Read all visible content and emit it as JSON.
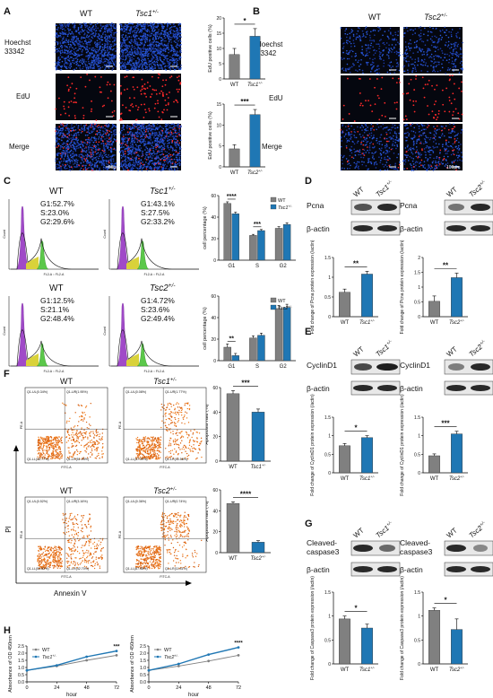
{
  "panels": {
    "A": {
      "label": "A",
      "col_labels": [
        "WT",
        "Tsc1"
      ],
      "col_sup": "+/-",
      "row_labels": [
        "Hoechst\n33342",
        "EdU",
        "Merge"
      ],
      "scale": "50μm"
    },
    "B": {
      "label": "B",
      "col_labels": [
        "WT",
        "Tsc2"
      ],
      "col_sup": "+/-",
      "row_labels": [
        "Hoechst\n33342",
        "EdU",
        "Merge"
      ],
      "scale": "100μm"
    },
    "C": {
      "label": "C"
    },
    "D": {
      "label": "D"
    },
    "E": {
      "label": "E"
    },
    "F": {
      "label": "F"
    },
    "G": {
      "label": "G"
    },
    "H": {
      "label": "H"
    }
  },
  "chart_data": [
    {
      "id": "A1",
      "type": "bar",
      "categories": [
        "WT",
        "Tsc1+/-"
      ],
      "values": [
        8.0,
        14.0
      ],
      "errors": [
        2.0,
        2.5
      ],
      "ylabel": "EdU positive cells (%)",
      "ylim": [
        0,
        20
      ],
      "yticks": [
        0,
        5,
        10,
        15,
        20
      ],
      "colors": [
        "#808080",
        "#1f77b4"
      ],
      "significance": "*"
    },
    {
      "id": "A2",
      "type": "bar",
      "categories": [
        "WT",
        "Tsc2+/-"
      ],
      "values": [
        4.3,
        12.5
      ],
      "errors": [
        1.0,
        1.2
      ],
      "ylabel": "EdU positive cells (%)",
      "ylim": [
        0,
        15
      ],
      "yticks": [
        0,
        5,
        10,
        15
      ],
      "colors": [
        "#808080",
        "#1f77b4"
      ],
      "significance": "***"
    },
    {
      "id": "C1",
      "type": "bar",
      "categories": [
        "G1",
        "S",
        "G2"
      ],
      "series": [
        {
          "name": "WT",
          "values": [
            52.7,
            23.0,
            29.6
          ],
          "errors": [
            1.5,
            1.0,
            1.5
          ]
        },
        {
          "name": "Tsc1+/-",
          "values": [
            43.1,
            27.5,
            33.2
          ],
          "errors": [
            1.5,
            1.0,
            1.5
          ]
        }
      ],
      "ylabel": "cell percentage (%)",
      "ylim": [
        0,
        60
      ],
      "yticks": [
        0,
        20,
        40,
        60
      ],
      "colors": [
        "#808080",
        "#1f77b4"
      ],
      "significance": [
        "****",
        "***",
        ""
      ],
      "legend": "top-right"
    },
    {
      "id": "C2",
      "type": "bar",
      "categories": [
        "G1",
        "S",
        "G2"
      ],
      "series": [
        {
          "name": "WT",
          "values": [
            12.5,
            21.1,
            48.4
          ],
          "errors": [
            3.0,
            2.0,
            3.0
          ]
        },
        {
          "name": "Tsc2+/-",
          "values": [
            4.7,
            23.6,
            49.4
          ],
          "errors": [
            2.0,
            2.0,
            3.0
          ]
        }
      ],
      "ylabel": "cell percentage (%)",
      "ylim": [
        0,
        60
      ],
      "yticks": [
        0,
        20,
        40,
        60
      ],
      "colors": [
        "#808080",
        "#1f77b4"
      ],
      "significance": [
        "**",
        "",
        ""
      ],
      "legend": "top-right"
    },
    {
      "id": "D1",
      "type": "bar",
      "categories": [
        "WT",
        "Tsc1+/-"
      ],
      "values": [
        0.62,
        1.08
      ],
      "errors": [
        0.08,
        0.07
      ],
      "ylabel": "Fold change of Pcna protein expression (/actin)",
      "ylim": [
        0,
        1.5
      ],
      "yticks": [
        0,
        0.5,
        1.0,
        1.5
      ],
      "colors": [
        "#808080",
        "#1f77b4"
      ],
      "significance": "**"
    },
    {
      "id": "D2",
      "type": "bar",
      "categories": [
        "WT",
        "Tsc2+/-"
      ],
      "values": [
        0.52,
        1.32
      ],
      "errors": [
        0.18,
        0.15
      ],
      "ylabel": "Fold change of Pcna protein expression (/actin)",
      "ylim": [
        0,
        2.0
      ],
      "yticks": [
        0,
        0.5,
        1.0,
        1.5,
        2.0
      ],
      "colors": [
        "#808080",
        "#1f77b4"
      ],
      "significance": "**"
    },
    {
      "id": "E1",
      "type": "bar",
      "categories": [
        "WT",
        "Tsc1+/-"
      ],
      "values": [
        0.73,
        0.95
      ],
      "errors": [
        0.06,
        0.05
      ],
      "ylabel": "Fold change of CyclinD1 protein expression (/actin)",
      "ylim": [
        0,
        1.5
      ],
      "yticks": [
        0,
        0.5,
        1.0,
        1.5
      ],
      "colors": [
        "#808080",
        "#1f77b4"
      ],
      "significance": "*"
    },
    {
      "id": "E2",
      "type": "bar",
      "categories": [
        "WT",
        "Tsc2+/-"
      ],
      "values": [
        0.46,
        1.05
      ],
      "errors": [
        0.05,
        0.07
      ],
      "ylabel": "Fold change of CyclinD1 protein expression (/actin)",
      "ylim": [
        0,
        1.5
      ],
      "yticks": [
        0,
        0.5,
        1.0,
        1.5
      ],
      "colors": [
        "#808080",
        "#1f77b4"
      ],
      "significance": "***"
    },
    {
      "id": "F1",
      "type": "bar",
      "categories": [
        "WT",
        "Tsc1+/-"
      ],
      "values": [
        55,
        40
      ],
      "errors": [
        2.5,
        2.5
      ],
      "ylabel": "Apoptosis rate (%)",
      "ylim": [
        0,
        60
      ],
      "yticks": [
        0,
        20,
        40,
        60
      ],
      "colors": [
        "#808080",
        "#1f77b4"
      ],
      "significance": "***"
    },
    {
      "id": "F2",
      "type": "bar",
      "categories": [
        "WT",
        "Tsc2+/-"
      ],
      "values": [
        47,
        10
      ],
      "errors": [
        1.5,
        1.5
      ],
      "ylabel": "Apoptosis rate (%)",
      "ylim": [
        0,
        60
      ],
      "yticks": [
        0,
        20,
        40,
        60
      ],
      "colors": [
        "#808080",
        "#1f77b4"
      ],
      "significance": "****"
    },
    {
      "id": "G1",
      "type": "bar",
      "categories": [
        "WT",
        "Tsc1+/-"
      ],
      "values": [
        0.94,
        0.75
      ],
      "errors": [
        0.06,
        0.08
      ],
      "ylabel": "Fold change of Caspase3 protein expression (/actin)",
      "ylim": [
        0,
        1.5
      ],
      "yticks": [
        0,
        0.5,
        1.0,
        1.5
      ],
      "colors": [
        "#808080",
        "#1f77b4"
      ],
      "significance": "*"
    },
    {
      "id": "G2",
      "type": "bar",
      "categories": [
        "WT",
        "Tsc2+/-"
      ],
      "values": [
        1.12,
        0.72
      ],
      "errors": [
        0.05,
        0.22
      ],
      "ylabel": "Fold change of Caspase3 protein expression (/actin)",
      "ylim": [
        0,
        1.5
      ],
      "yticks": [
        0,
        0.5,
        1.0,
        1.5
      ],
      "colors": [
        "#808080",
        "#1f77b4"
      ],
      "significance": "*"
    },
    {
      "id": "H1",
      "type": "line",
      "x": [
        0,
        24,
        48,
        72
      ],
      "series": [
        {
          "name": "WT",
          "values": [
            0.8,
            1.1,
            1.5,
            1.85
          ]
        },
        {
          "name": "Tsc1+/-",
          "values": [
            0.8,
            1.15,
            1.75,
            2.15
          ]
        }
      ],
      "xlabel": "hour",
      "ylabel": "Absorbance of OD 450nm",
      "ylim": [
        0,
        2.5
      ],
      "yticks": [
        0,
        0.5,
        1.0,
        1.5,
        2.0,
        2.5
      ],
      "colors": [
        "#808080",
        "#1f77b4"
      ],
      "significance": "***",
      "legend": "top-left"
    },
    {
      "id": "H2",
      "type": "line",
      "x": [
        0,
        24,
        48,
        72
      ],
      "series": [
        {
          "name": "WT",
          "values": [
            0.8,
            1.1,
            1.45,
            1.85
          ]
        },
        {
          "name": "Tsc2+/-",
          "values": [
            0.8,
            1.25,
            1.9,
            2.4
          ]
        }
      ],
      "xlabel": "hour",
      "ylabel": "Absorbance of OD 450nm",
      "ylim": [
        0,
        2.5
      ],
      "yticks": [
        0,
        0.5,
        1.0,
        1.5,
        2.0,
        2.5
      ],
      "colors": [
        "#808080",
        "#1f77b4"
      ],
      "significance": "****",
      "legend": "top-left"
    }
  ],
  "flow": {
    "C_top_left": {
      "title": "WT",
      "g1": "G1:52.7%",
      "s": "S:23.0%",
      "g2": "G2:29.6%"
    },
    "C_top_right": {
      "title": "Tsc1",
      "g1": "G1:43.1%",
      "s": "S:27.5%",
      "g2": "G2:33.2%"
    },
    "C_bot_left": {
      "title": "WT",
      "g1": "G1:12.5%",
      "s": "S:21.1%",
      "g2": "G2:48.4%"
    },
    "C_bot_right": {
      "title": "Tsc2",
      "g1": "G1:4.72%",
      "s": "S:23.6%",
      "g2": "G2:49.4%"
    },
    "sup": "+/-",
    "axis_y": "Count",
    "axis_x": "FL2-A :: FL2-A"
  },
  "apoptosis": {
    "tl": {
      "title": "WT",
      "q": [
        "Q1-UL(0.34%)",
        "Q1-UR(1.95%)",
        "Q1-LL(46.77%)",
        "Q1-LR(51.25%)"
      ]
    },
    "tr": {
      "title": "Tsc1",
      "q": [
        "Q1-UL(0.08%)",
        "Q1-UR(1.77%)",
        "Q1-LL(57.59%)",
        "Q1-LR(40.58%)"
      ]
    },
    "bl": {
      "title": "WT",
      "q": [
        "Q1-UL(0.52%)",
        "Q1-UR(3.16%)",
        "Q1-LL(53.62%)",
        "Q1-LR(42.70%)"
      ]
    },
    "br": {
      "title": "Tsc2",
      "q": [
        "Q1-UL(0.36%)",
        "Q1-UR(0.74%)",
        "Q1-LL(87.58%)",
        "Q1-LR(11.81%)"
      ]
    },
    "sup": "+/-",
    "pi_label": "PI",
    "annexin_label": "Annexin V",
    "axis_y": "PE-A",
    "axis_x": "FITC-A"
  },
  "blots": {
    "D_left": {
      "top": "Pcna",
      "bottom": "β-actin",
      "cols": [
        "WT",
        "Tsc1"
      ],
      "sup": "+/-"
    },
    "D_right": {
      "top": "Pcna",
      "bottom": "β-actin",
      "cols": [
        "WT",
        "Tsc2"
      ],
      "sup": "+/-"
    },
    "E_left": {
      "top": "CyclinD1",
      "bottom": "β-actin",
      "cols": [
        "WT",
        "Tsc1"
      ],
      "sup": "+/-"
    },
    "E_right": {
      "top": "CyclinD1",
      "bottom": "β-actin",
      "cols": [
        "WT",
        "Tsc2"
      ],
      "sup": "+/-"
    },
    "G_left": {
      "top": "Cleaved-\ncaspase3",
      "bottom": "β-actin",
      "cols": [
        "WT",
        "Tsc1"
      ],
      "sup": "+/-"
    },
    "G_right": {
      "top": "Cleaved-\ncaspase3",
      "bottom": "β-actin",
      "cols": [
        "WT",
        "Tsc2"
      ],
      "sup": "+/-"
    }
  }
}
